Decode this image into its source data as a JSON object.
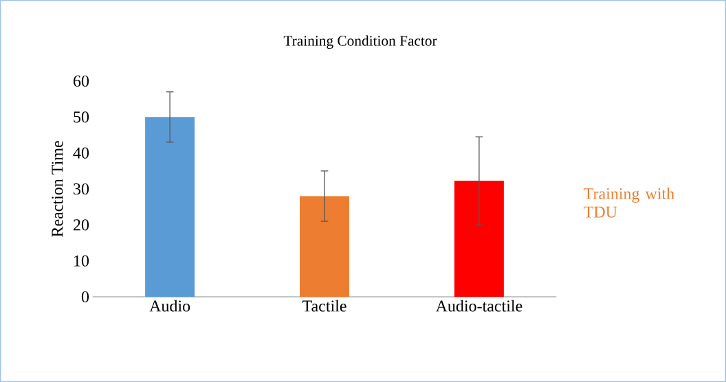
{
  "chart_data": {
    "type": "bar",
    "title": "Training Condition Factor",
    "ylabel": "Reaction Time",
    "categories": [
      "Audio",
      "Tactile",
      "Audio-tactile"
    ],
    "series": [
      {
        "color": "#5b9bd5",
        "values": [
          50,
          null,
          null
        ],
        "errors": [
          7,
          null,
          null
        ]
      },
      {
        "name": "Training with TDU",
        "color": "#ed7d31",
        "values": [
          null,
          28,
          null
        ],
        "errors": [
          null,
          7,
          null
        ]
      },
      {
        "color": "#ff0000",
        "values": [
          null,
          null,
          32.3
        ],
        "errors": [
          null,
          null,
          [
            20,
            44.5
          ]
        ]
      }
    ],
    "ylim": [
      0,
      60
    ],
    "yticks": [
      0,
      10,
      20,
      30,
      40,
      50,
      60
    ],
    "legend": "right"
  }
}
